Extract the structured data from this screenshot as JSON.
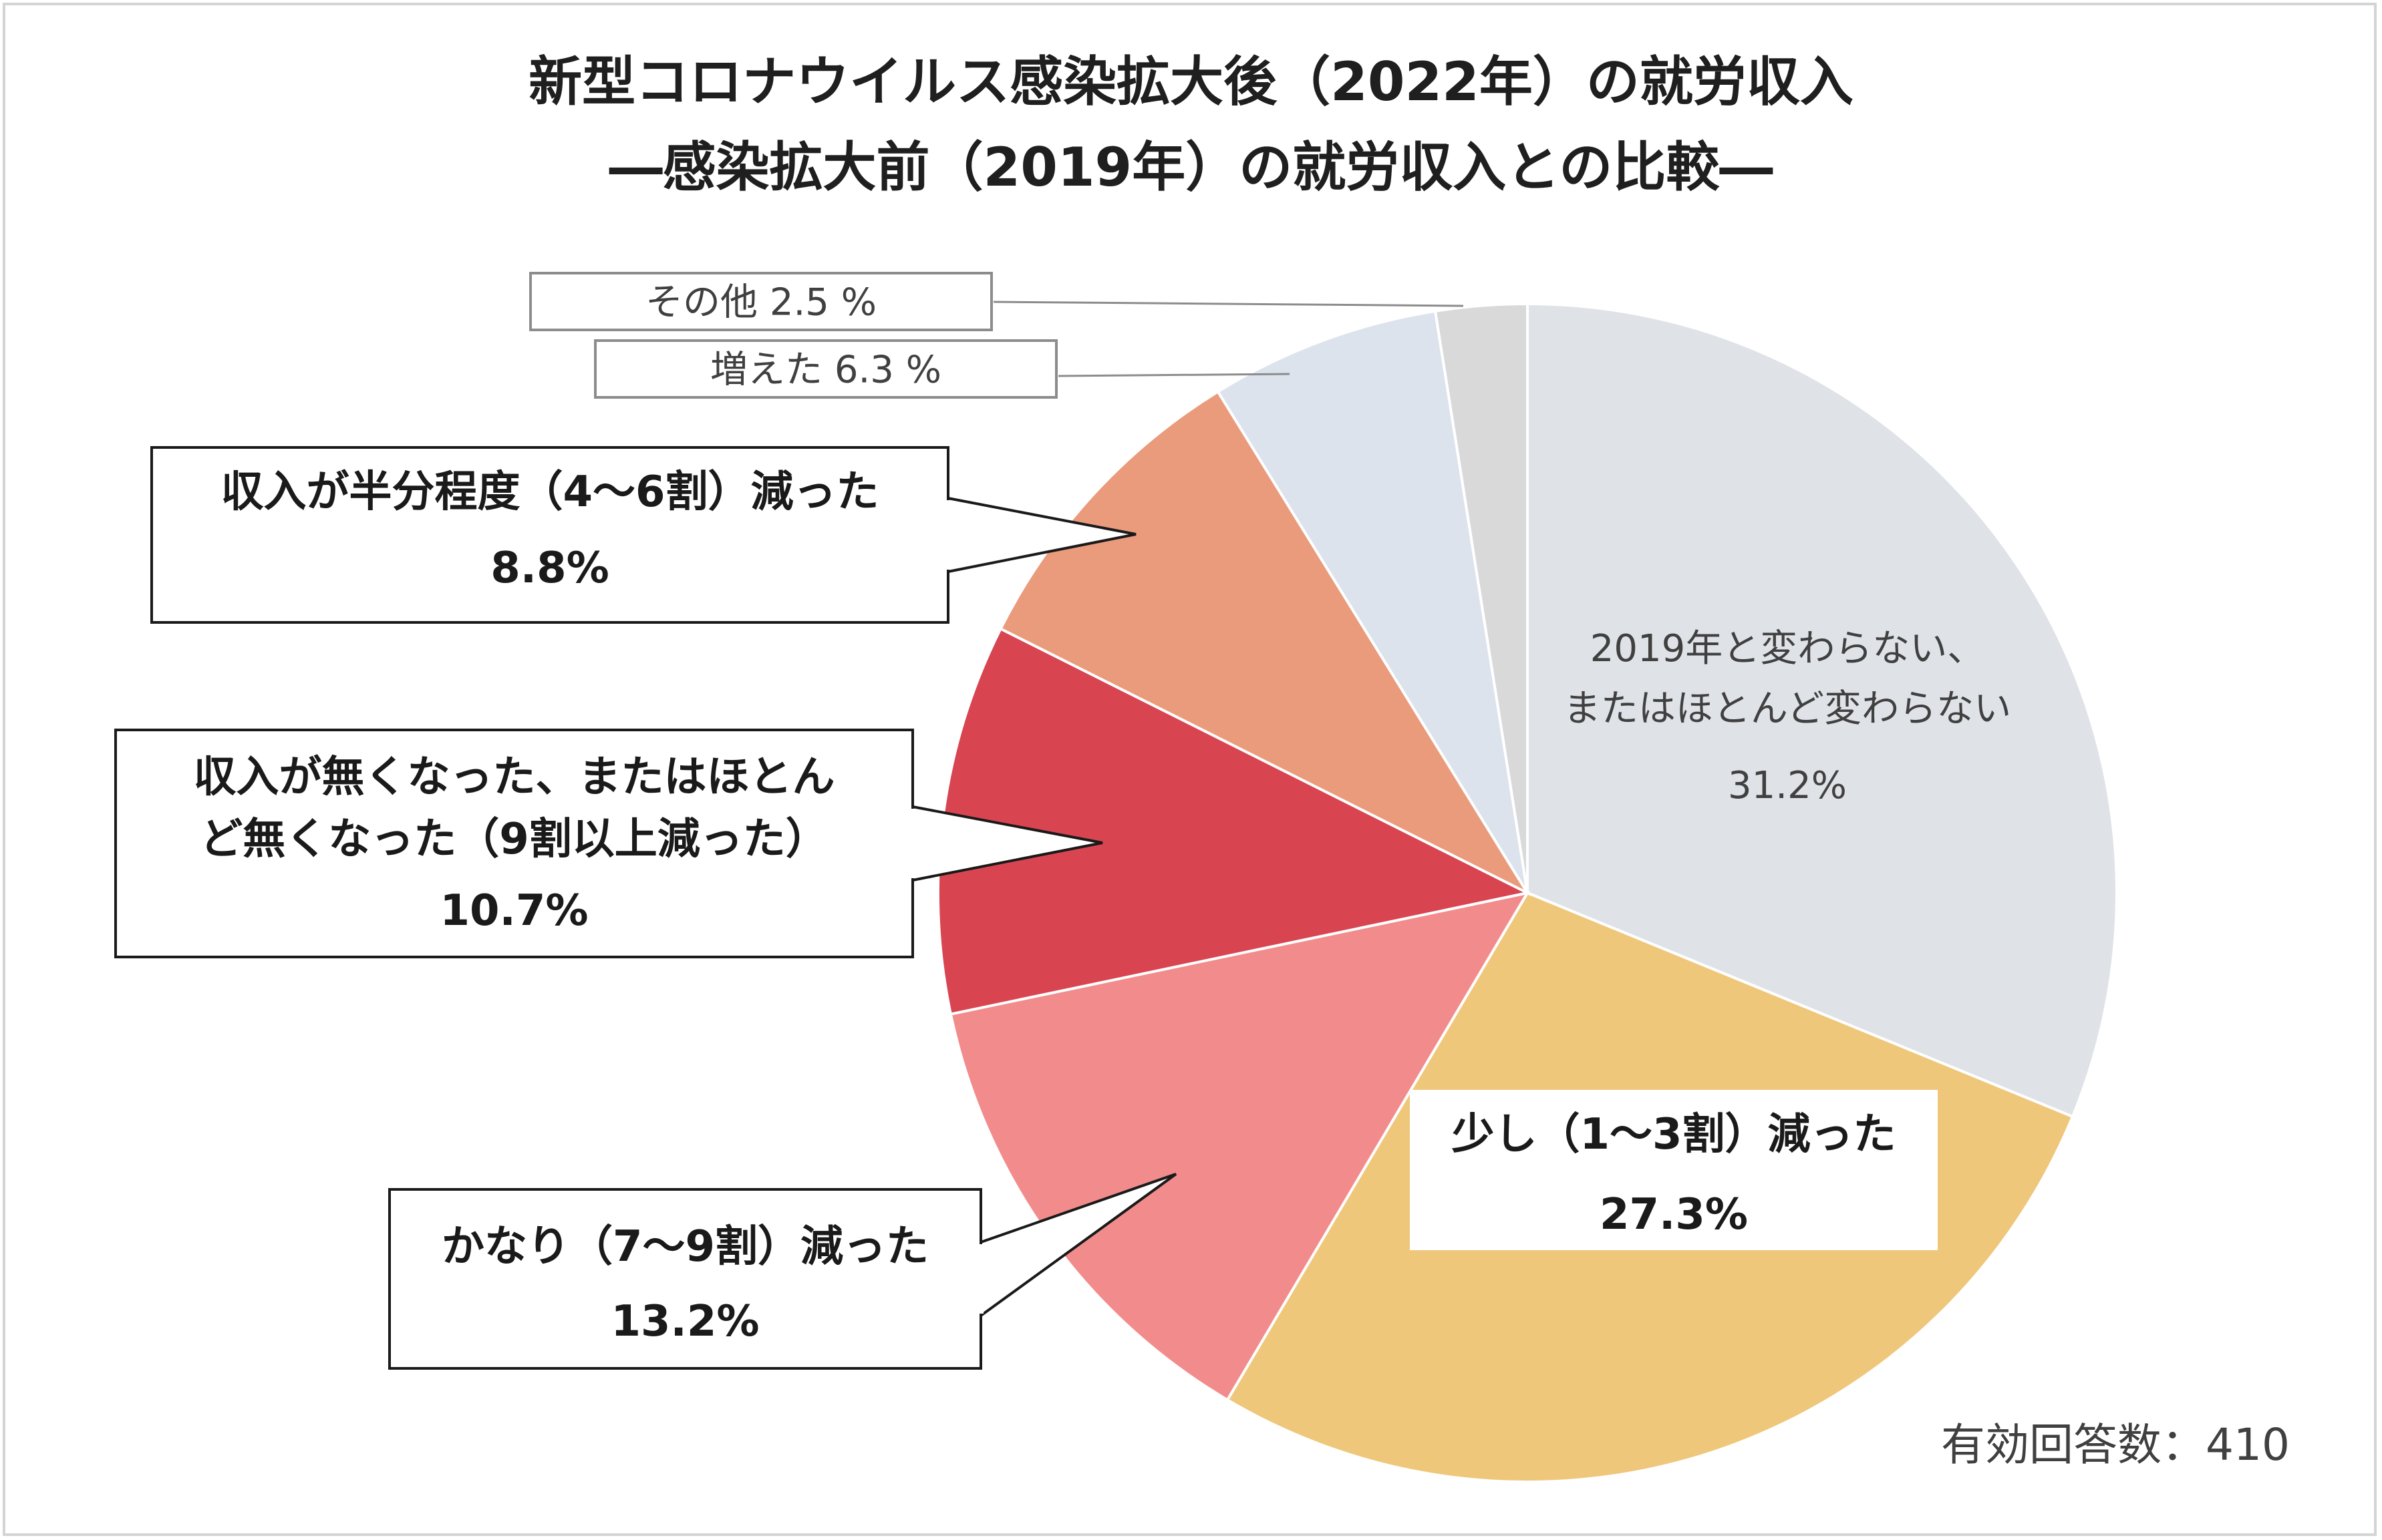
{
  "title_line1": "新型コロナウイルス感染拡大後（2022年）の就労収入",
  "title_line2": "―感染拡大前（2019年）の就労収入との比較―",
  "note": "有効回答数：410",
  "chart_data": {
    "type": "pie",
    "title": "新型コロナウイルス感染拡大後（2022年）の就労収入 ―感染拡大前（2019年）の就労収入との比較―",
    "legend": "none",
    "slices": [
      {
        "label_lines": [
          "2019年と変わらない、",
          "またはほとんど変わらない"
        ],
        "value": 31.2,
        "value_text": "31.2%",
        "color": "#dfe2e7"
      },
      {
        "label_lines": [
          "少し（1～3割）減った"
        ],
        "value": 27.3,
        "value_text": "27.3%",
        "color": "#efc77b"
      },
      {
        "label_lines": [
          "かなり（7～9割）減った"
        ],
        "value": 13.2,
        "value_text": "13.2%",
        "color": "#f28c8c"
      },
      {
        "label_lines": [
          "収入が無くなった、またはほとん",
          "ど無くなった（9割以上減った）"
        ],
        "value": 10.7,
        "value_text": "10.7%",
        "color": "#d84551"
      },
      {
        "label_lines": [
          "収入が半分程度（4～6割）減った"
        ],
        "value": 8.8,
        "value_text": "8.8%",
        "color": "#e99b7c"
      },
      {
        "label_lines": [
          "増えた"
        ],
        "value": 6.3,
        "value_text": "6.3 %",
        "color": "#dce3ed"
      },
      {
        "label_lines": [
          "その他"
        ],
        "value": 2.5,
        "value_text": "2.5 %",
        "color": "#d9d9d9"
      }
    ]
  }
}
